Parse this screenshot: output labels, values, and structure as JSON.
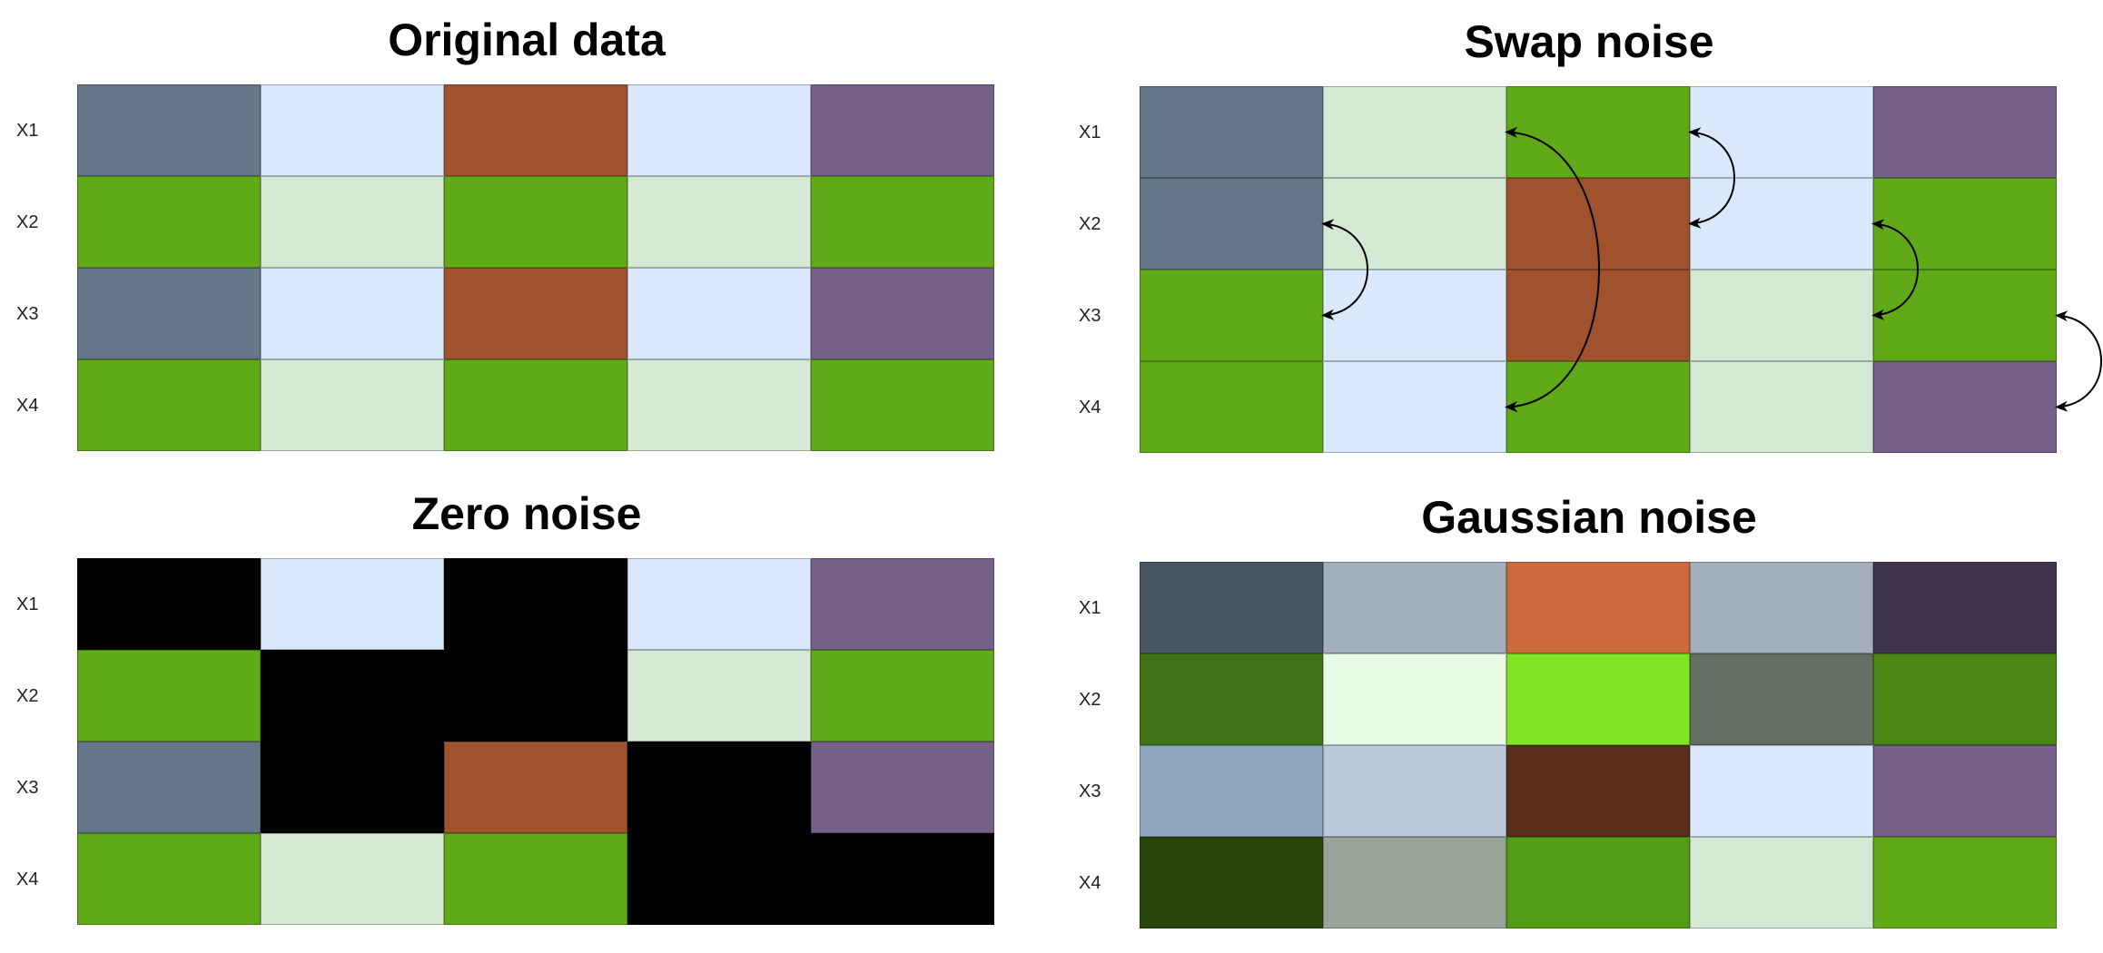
{
  "palette": {
    "slate": "#647687",
    "light_blue": "#dae8fc",
    "brown": "#a0522d",
    "purple": "#76608a",
    "green": "#60a917",
    "light_green": "#d5e8d4",
    "black": "#000000"
  },
  "panels": [
    {
      "id": "original",
      "title": "Original data",
      "row_labels": [
        "X1",
        "X2",
        "X3",
        "X4"
      ],
      "rows": [
        [
          "#647687",
          "#dae8fc",
          "#a0522d",
          "#dae8fc",
          "#76608a"
        ],
        [
          "#60a917",
          "#d5e8d4",
          "#60a917",
          "#d5e8d4",
          "#60a917"
        ],
        [
          "#647687",
          "#dae8fc",
          "#a0522d",
          "#dae8fc",
          "#76608a"
        ],
        [
          "#60a917",
          "#d5e8d4",
          "#60a917",
          "#d5e8d4",
          "#60a917"
        ]
      ]
    },
    {
      "id": "swap",
      "title": "Swap noise",
      "row_labels": [
        "X1",
        "X2",
        "X3",
        "X4"
      ],
      "rows": [
        [
          "#647687",
          "#d5e8d4",
          "#60a917",
          "#dae8fc",
          "#76608a"
        ],
        [
          "#647687",
          "#d5e8d4",
          "#a0522d",
          "#dae8fc",
          "#60a917"
        ],
        [
          "#60a917",
          "#dae8fc",
          "#a0522d",
          "#d5e8d4",
          "#60a917"
        ],
        [
          "#60a917",
          "#dae8fc",
          "#60a917",
          "#d5e8d4",
          "#76608a"
        ]
      ],
      "swaps": [
        {
          "column": 1,
          "rows": [
            2,
            3
          ]
        },
        {
          "column": 2,
          "rows": [
            1,
            4
          ]
        },
        {
          "column": 3,
          "rows": [
            1,
            2
          ]
        },
        {
          "column": 4,
          "rows": [
            2,
            3
          ]
        },
        {
          "column": 5,
          "rows": [
            3,
            4
          ]
        }
      ]
    },
    {
      "id": "zero",
      "title": "Zero noise",
      "row_labels": [
        "X1",
        "X2",
        "X3",
        "X4"
      ],
      "rows": [
        [
          "#000000",
          "#dae8fc",
          "#000000",
          "#dae8fc",
          "#76608a"
        ],
        [
          "#60a917",
          "#000000",
          "#000000",
          "#d5e8d4",
          "#60a917"
        ],
        [
          "#647687",
          "#000000",
          "#a0522d",
          "#000000",
          "#76608a"
        ],
        [
          "#60a917",
          "#d5e8d4",
          "#60a917",
          "#000000",
          "#000000"
        ]
      ]
    },
    {
      "id": "gaussian",
      "title": "Gaussian noise",
      "row_labels": [
        "X1",
        "X2",
        "X3",
        "X4"
      ],
      "rows": [
        [
          "#4a5662",
          "#a3afbd",
          "#cb6a3b",
          "#a3afbd",
          "#40334c"
        ],
        [
          "#407316",
          "#e8f9e6",
          "#7fe421",
          "#646f64",
          "#4b8715"
        ],
        [
          "#8fa5bd",
          "#bcc8da",
          "#582e18",
          "#dae8fc",
          "#76608a"
        ],
        [
          "#2b460c",
          "#98a497",
          "#539a15",
          "#d5e8d4",
          "#60a917"
        ]
      ]
    }
  ]
}
